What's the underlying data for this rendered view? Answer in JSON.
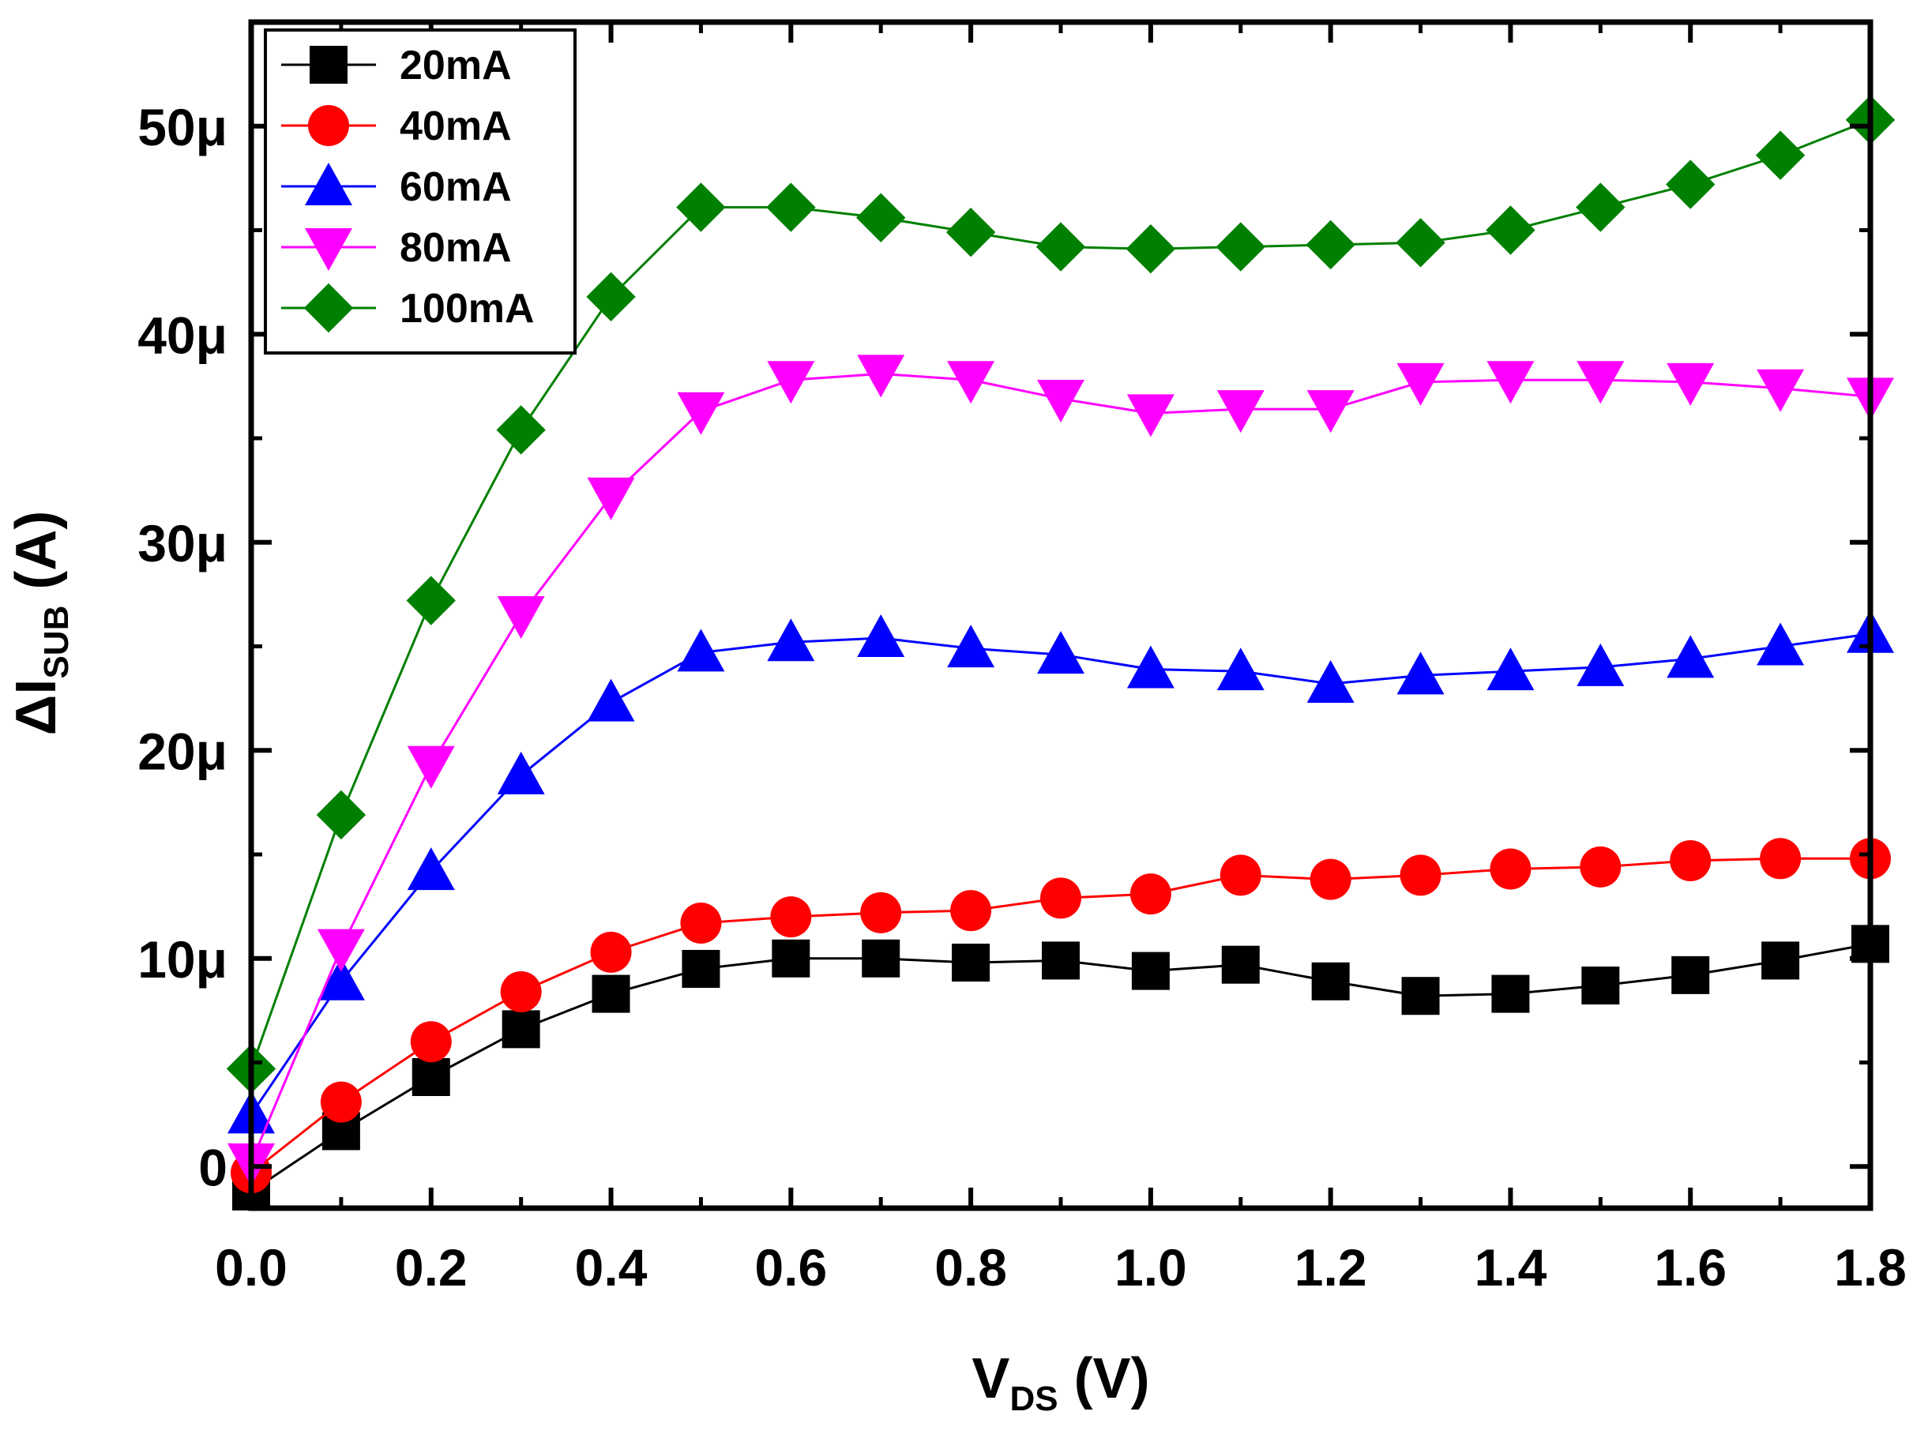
{
  "chart_data": {
    "type": "line",
    "title": "",
    "xlabel": {
      "main": "V",
      "sub": "DS",
      "unit": " (V)"
    },
    "ylabel": {
      "prefix": "ΔI",
      "sub": "SUB",
      "unit": " (A)"
    },
    "xlim": [
      0.0,
      1.8
    ],
    "ylim": [
      -2e-06,
      5.5e-05
    ],
    "x_ticks": [
      0.0,
      0.2,
      0.4,
      0.6,
      0.8,
      1.0,
      1.2,
      1.4,
      1.6,
      1.8
    ],
    "x_tick_labels": [
      "0.0",
      "0.2",
      "0.4",
      "0.6",
      "0.8",
      "1.0",
      "1.2",
      "1.4",
      "1.6",
      "1.8"
    ],
    "y_ticks": [
      0,
      1e-05,
      2e-05,
      3e-05,
      4e-05,
      5e-05
    ],
    "y_tick_labels": [
      "0",
      "10μ",
      "20μ",
      "30μ",
      "40μ",
      "50μ"
    ],
    "grid": false,
    "legend_position": "top-left",
    "x": [
      0.0,
      0.1,
      0.2,
      0.3,
      0.4,
      0.5,
      0.6,
      0.7,
      0.8,
      0.9,
      1.0,
      1.1,
      1.2,
      1.3,
      1.4,
      1.5,
      1.6,
      1.7,
      1.8
    ],
    "series": [
      {
        "name": "20mA",
        "color": "#000000",
        "marker": "square",
        "values": [
          -1.2e-06,
          1.7e-06,
          4.3e-06,
          6.6e-06,
          8.3e-06,
          9.5e-06,
          1e-05,
          1e-05,
          9.8e-06,
          9.9e-06,
          9.4e-06,
          9.7e-06,
          8.9e-06,
          8.2e-06,
          8.3e-06,
          8.7e-06,
          9.2e-06,
          9.9e-06,
          1.07e-05
        ]
      },
      {
        "name": "40mA",
        "color": "#ff0000",
        "marker": "circle",
        "values": [
          -3e-07,
          3.1e-06,
          6e-06,
          8.4e-06,
          1.03e-05,
          1.17e-05,
          1.2e-05,
          1.22e-05,
          1.23e-05,
          1.29e-05,
          1.31e-05,
          1.4e-05,
          1.38e-05,
          1.4e-05,
          1.43e-05,
          1.44e-05,
          1.47e-05,
          1.48e-05,
          1.48e-05
        ]
      },
      {
        "name": "60mA",
        "color": "#0000ff",
        "marker": "triangle-up",
        "values": [
          2.5e-06,
          8.9e-06,
          1.42e-05,
          1.88e-05,
          2.23e-05,
          2.47e-05,
          2.52e-05,
          2.54e-05,
          2.49e-05,
          2.46e-05,
          2.39e-05,
          2.38e-05,
          2.32e-05,
          2.36e-05,
          2.38e-05,
          2.4e-05,
          2.44e-05,
          2.5e-05,
          2.56e-05
        ]
      },
      {
        "name": "80mA",
        "color": "#ff00ff",
        "marker": "triangle-down",
        "values": [
          2e-07,
          1.05e-05,
          1.93e-05,
          2.65e-05,
          3.22e-05,
          3.63e-05,
          3.78e-05,
          3.81e-05,
          3.78e-05,
          3.69e-05,
          3.62e-05,
          3.64e-05,
          3.64e-05,
          3.77e-05,
          3.78e-05,
          3.78e-05,
          3.77e-05,
          3.74e-05,
          3.7e-05
        ]
      },
      {
        "name": "100mA",
        "color": "#008000",
        "marker": "diamond",
        "values": [
          4.7e-06,
          1.69e-05,
          2.72e-05,
          3.54e-05,
          4.18e-05,
          4.61e-05,
          4.61e-05,
          4.56e-05,
          4.49e-05,
          4.42e-05,
          4.41e-05,
          4.42e-05,
          4.43e-05,
          4.44e-05,
          4.5e-05,
          4.61e-05,
          4.72e-05,
          4.86e-05,
          5.03e-05
        ]
      }
    ]
  }
}
